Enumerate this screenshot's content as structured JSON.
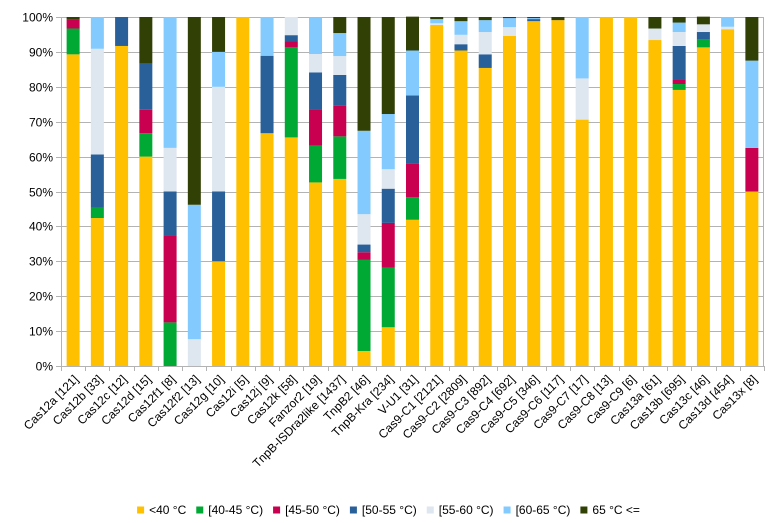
{
  "chart_data": {
    "type": "bar",
    "stacked": true,
    "percent": true,
    "title": "",
    "xlabel": "",
    "ylabel": "",
    "ylim": [
      0,
      100
    ],
    "yticks": [
      "0%",
      "10%",
      "20%",
      "30%",
      "40%",
      "50%",
      "60%",
      "70%",
      "80%",
      "90%",
      "100%"
    ],
    "grid": "horizontal",
    "legend_position": "bottom",
    "categories": [
      "Cas12a [121]",
      "Cas12b [33]",
      "Cas12c [12]",
      "Cas12d [15]",
      "Cas12f1 [8]",
      "Cas12f2 [13]",
      "Cas12g [10]",
      "Cas12i [5]",
      "Cas12j [9]",
      "Cas12k [58]",
      "Fanzor2 [19]",
      "TnpB-ISDra2like [1437]",
      "TnpB2 [46]",
      "TnpB-Kra [234]",
      "V-U1 [31]",
      "Cas9-C1 [2121]",
      "Cas9-C2 [2809]",
      "Cas9-C3 [892]",
      "Cas9-C4 [692]",
      "Cas9-C5 [346]",
      "Cas9-C6 [117]",
      "Cas9-C7 [17]",
      "Cas9-C8 [13]",
      "Cas9-C9 [6]",
      "Cas13a [61]",
      "Cas13b [695]",
      "Cas13c [46]",
      "Cas13d [454]",
      "Cas13x [8]"
    ],
    "series": [
      {
        "name": "<40 °C",
        "color": "#ffc000",
        "values": [
          89.3,
          42.4,
          91.7,
          60.0,
          0.0,
          0.0,
          30.0,
          100.0,
          66.7,
          65.5,
          52.6,
          53.6,
          4.3,
          11.1,
          41.9,
          97.7,
          90.4,
          85.4,
          94.6,
          98.8,
          99.1,
          70.6,
          100.0,
          100.0,
          93.4,
          79.1,
          91.3,
          96.5,
          50.0
        ]
      },
      {
        "name": "[40-45 °C)",
        "color": "#00a933",
        "values": [
          7.4,
          3.0,
          0.0,
          6.7,
          12.5,
          0.0,
          0.0,
          0.0,
          0.0,
          25.9,
          10.5,
          12.2,
          26.1,
          17.1,
          6.5,
          0.0,
          0.0,
          0.0,
          0.0,
          0.0,
          0.0,
          0.0,
          0.0,
          0.0,
          0.0,
          1.7,
          2.2,
          0.0,
          0.0
        ]
      },
      {
        "name": "[45-50 °C)",
        "color": "#c9004f",
        "values": [
          2.5,
          0.0,
          0.0,
          6.7,
          25.0,
          0.0,
          0.0,
          0.0,
          0.0,
          1.7,
          10.5,
          8.9,
          2.2,
          12.8,
          9.7,
          0.0,
          0.0,
          0.0,
          0.0,
          0.0,
          0.0,
          0.0,
          0.0,
          0.0,
          0.0,
          1.4,
          0.0,
          0.0,
          12.5
        ]
      },
      {
        "name": "[50-55 °C)",
        "color": "#2a6099",
        "values": [
          0.0,
          15.2,
          8.3,
          13.3,
          12.5,
          0.0,
          20.0,
          0.0,
          22.2,
          1.7,
          10.5,
          8.7,
          2.2,
          9.8,
          19.4,
          0.0,
          1.8,
          3.9,
          0.0,
          0.6,
          0.0,
          0.0,
          0.0,
          0.0,
          0.0,
          9.5,
          2.2,
          0.0,
          0.0
        ]
      },
      {
        "name": "[55-60 °C)",
        "color": "#dee6ef",
        "values": [
          0.0,
          30.3,
          0.0,
          0.0,
          12.5,
          7.7,
          30.0,
          0.0,
          0.0,
          5.2,
          5.3,
          5.4,
          8.7,
          5.6,
          0.0,
          0.5,
          2.7,
          6.4,
          2.5,
          0.0,
          0.0,
          11.8,
          0.0,
          0.0,
          3.3,
          4.0,
          2.2,
          0.7,
          0.0
        ]
      },
      {
        "name": "[60-65 °C)",
        "color": "#83caff",
        "values": [
          0.0,
          9.1,
          0.0,
          0.0,
          37.5,
          38.5,
          10.0,
          0.0,
          11.1,
          0.0,
          10.5,
          6.6,
          23.9,
          15.8,
          12.9,
          1.2,
          3.9,
          3.4,
          2.6,
          0.3,
          0.0,
          17.6,
          0.0,
          0.0,
          0.0,
          2.7,
          0.0,
          2.8,
          25.0
        ]
      },
      {
        "name": "65 °C <=",
        "color": "#314004",
        "values": [
          0.8,
          0.0,
          0.0,
          13.3,
          0.0,
          53.8,
          10.0,
          0.0,
          0.0,
          0.0,
          0.0,
          4.6,
          32.6,
          27.8,
          9.7,
          0.6,
          1.2,
          0.9,
          0.3,
          0.3,
          0.9,
          0.0,
          0.0,
          0.0,
          3.3,
          1.6,
          2.2,
          0.0,
          12.5
        ]
      }
    ]
  }
}
